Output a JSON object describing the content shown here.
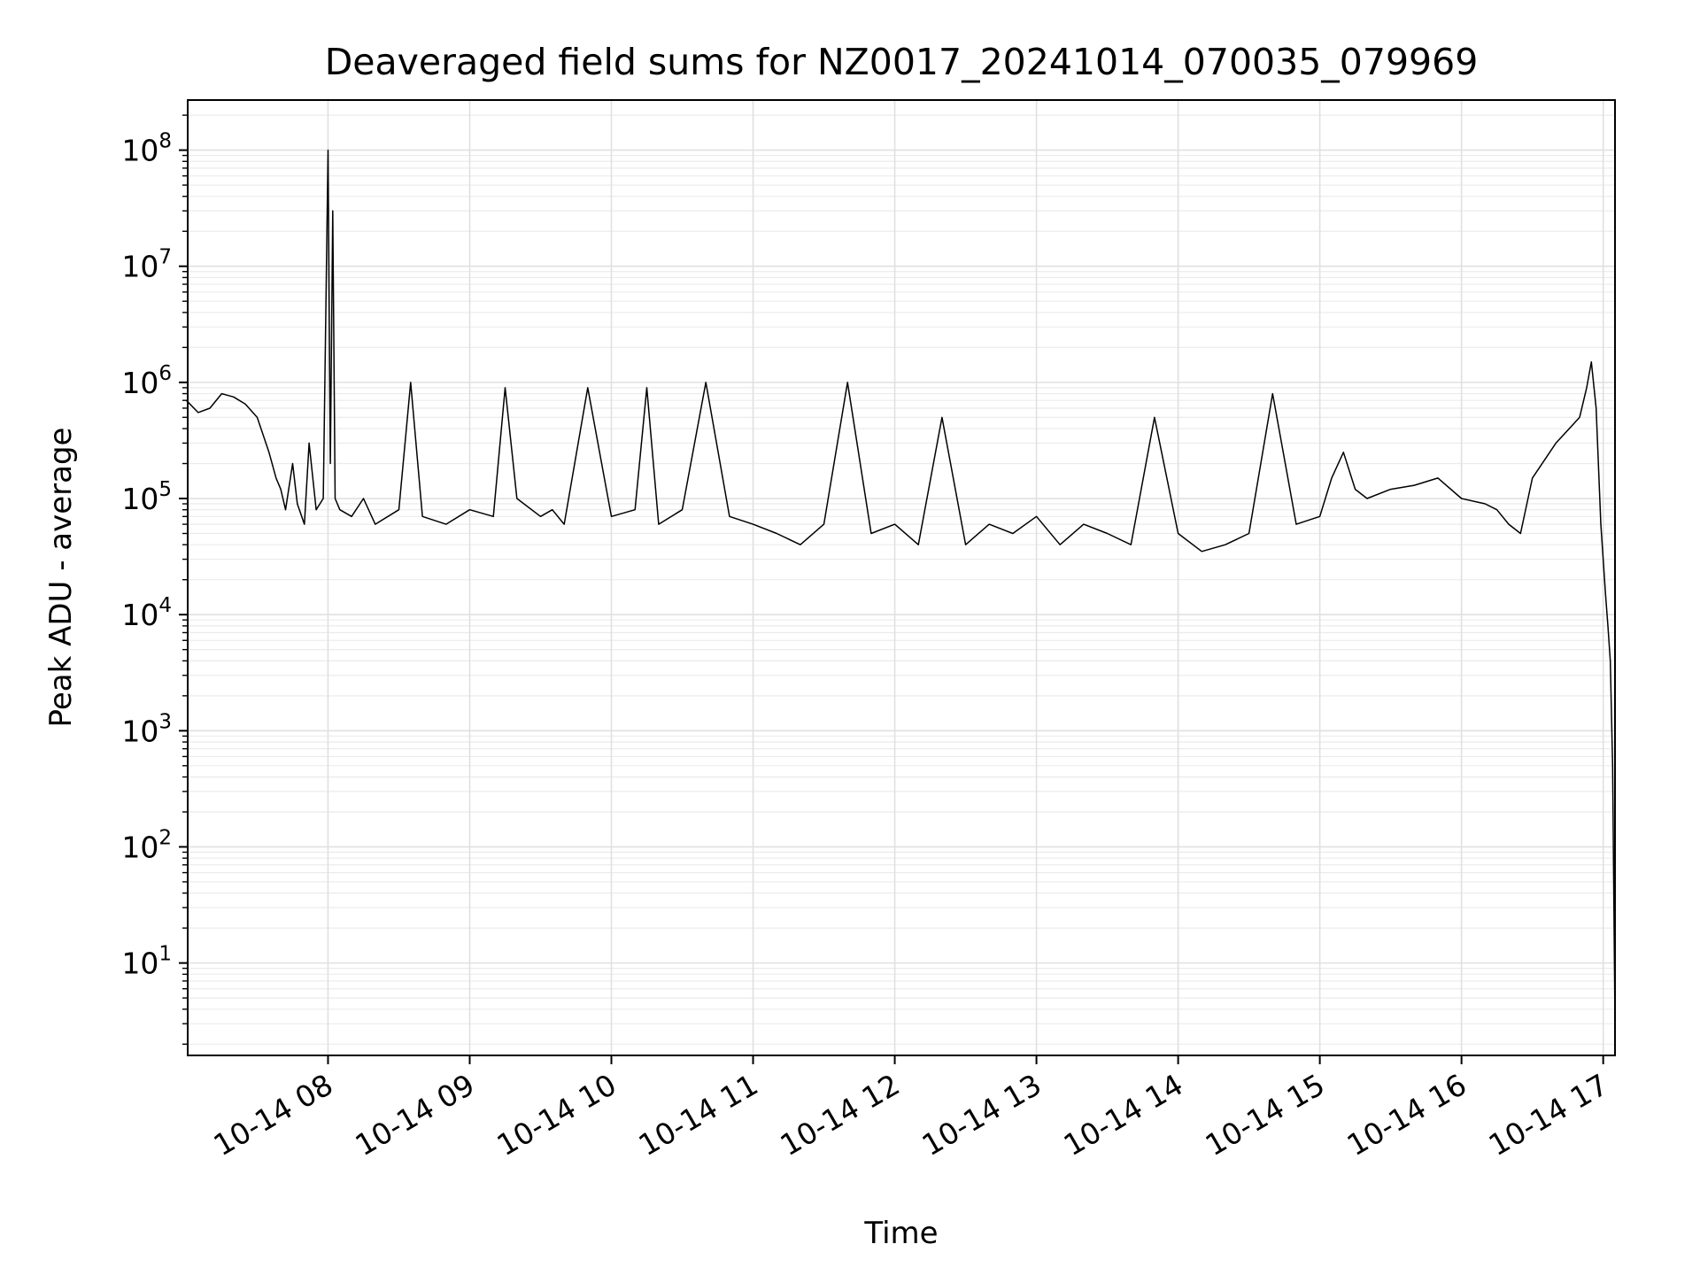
{
  "chart_data": {
    "type": "line",
    "title": "Deaveraged field sums for NZ0017_20241014_070035_079969",
    "xlabel": "Time",
    "ylabel": "Peak ADU - average",
    "yscale": "log",
    "ylim": [
      1.6,
      270000000
    ],
    "xlim": [
      "2024-10-14 07:00:35",
      "2024-10-14 17:05"
    ],
    "grid": "major and minor on both axes",
    "x_tick_labels": [
      "10-14 08",
      "10-14 09",
      "10-14 10",
      "10-14 11",
      "10-14 12",
      "10-14 13",
      "10-14 14",
      "10-14 15",
      "10-14 16",
      "10-14 17"
    ],
    "y_tick_labels": [
      {
        "base": "10",
        "exp": "1"
      },
      {
        "base": "10",
        "exp": "2"
      },
      {
        "base": "10",
        "exp": "3"
      },
      {
        "base": "10",
        "exp": "4"
      },
      {
        "base": "10",
        "exp": "5"
      },
      {
        "base": "10",
        "exp": "6"
      },
      {
        "base": "10",
        "exp": "7"
      },
      {
        "base": "10",
        "exp": "8"
      }
    ],
    "series": [
      {
        "color": "#000000",
        "x": [
          "2024-10-14 07:00",
          "2024-10-14 07:05",
          "2024-10-14 07:10",
          "2024-10-14 07:15",
          "2024-10-14 07:20",
          "2024-10-14 07:25",
          "2024-10-14 07:30",
          "2024-10-14 07:35",
          "2024-10-14 07:38",
          "2024-10-14 07:40",
          "2024-10-14 07:42",
          "2024-10-14 07:45",
          "2024-10-14 07:47",
          "2024-10-14 07:50",
          "2024-10-14 07:52",
          "2024-10-14 07:55",
          "2024-10-14 07:58",
          "2024-10-14 08:00",
          "2024-10-14 08:01",
          "2024-10-14 08:02",
          "2024-10-14 08:03",
          "2024-10-14 08:05",
          "2024-10-14 08:10",
          "2024-10-14 08:15",
          "2024-10-14 08:20",
          "2024-10-14 08:30",
          "2024-10-14 08:35",
          "2024-10-14 08:40",
          "2024-10-14 08:50",
          "2024-10-14 09:00",
          "2024-10-14 09:10",
          "2024-10-14 09:15",
          "2024-10-14 09:20",
          "2024-10-14 09:30",
          "2024-10-14 09:35",
          "2024-10-14 09:40",
          "2024-10-14 09:50",
          "2024-10-14 10:00",
          "2024-10-14 10:10",
          "2024-10-14 10:15",
          "2024-10-14 10:20",
          "2024-10-14 10:30",
          "2024-10-14 10:40",
          "2024-10-14 10:50",
          "2024-10-14 11:00",
          "2024-10-14 11:10",
          "2024-10-14 11:20",
          "2024-10-14 11:30",
          "2024-10-14 11:40",
          "2024-10-14 11:50",
          "2024-10-14 12:00",
          "2024-10-14 12:10",
          "2024-10-14 12:20",
          "2024-10-14 12:30",
          "2024-10-14 12:40",
          "2024-10-14 12:50",
          "2024-10-14 13:00",
          "2024-10-14 13:10",
          "2024-10-14 13:20",
          "2024-10-14 13:30",
          "2024-10-14 13:40",
          "2024-10-14 13:50",
          "2024-10-14 14:00",
          "2024-10-14 14:10",
          "2024-10-14 14:20",
          "2024-10-14 14:30",
          "2024-10-14 14:40",
          "2024-10-14 14:50",
          "2024-10-14 15:00",
          "2024-10-14 15:05",
          "2024-10-14 15:10",
          "2024-10-14 15:15",
          "2024-10-14 15:20",
          "2024-10-14 15:30",
          "2024-10-14 15:40",
          "2024-10-14 15:50",
          "2024-10-14 16:00",
          "2024-10-14 16:10",
          "2024-10-14 16:15",
          "2024-10-14 16:20",
          "2024-10-14 16:25",
          "2024-10-14 16:30",
          "2024-10-14 16:40",
          "2024-10-14 16:50",
          "2024-10-14 16:53",
          "2024-10-14 16:55",
          "2024-10-14 16:57",
          "2024-10-14 16:59",
          "2024-10-14 17:01",
          "2024-10-14 17:02",
          "2024-10-14 17:03",
          "2024-10-14 17:04",
          "2024-10-14 17:05"
        ],
        "y": [
          700000,
          550000,
          600000,
          800000,
          750000,
          650000,
          500000,
          250000,
          150000,
          120000,
          80000,
          200000,
          90000,
          60000,
          300000,
          80000,
          100000,
          100000000,
          200000,
          30000000,
          100000,
          80000,
          70000,
          100000,
          60000,
          80000,
          1000000,
          70000,
          60000,
          80000,
          70000,
          900000,
          100000,
          70000,
          80000,
          60000,
          900000,
          70000,
          80000,
          900000,
          60000,
          80000,
          1000000,
          70000,
          60000,
          50000,
          40000,
          60000,
          1000000,
          50000,
          60000,
          40000,
          500000,
          40000,
          60000,
          50000,
          70000,
          40000,
          60000,
          50000,
          40000,
          500000,
          50000,
          35000,
          40000,
          50000,
          800000,
          60000,
          70000,
          150000,
          250000,
          120000,
          100000,
          120000,
          130000,
          150000,
          100000,
          90000,
          80000,
          60000,
          50000,
          150000,
          300000,
          500000,
          900000,
          1500000,
          600000,
          60000,
          15000,
          8000,
          4000,
          500,
          3
        ]
      }
    ]
  }
}
